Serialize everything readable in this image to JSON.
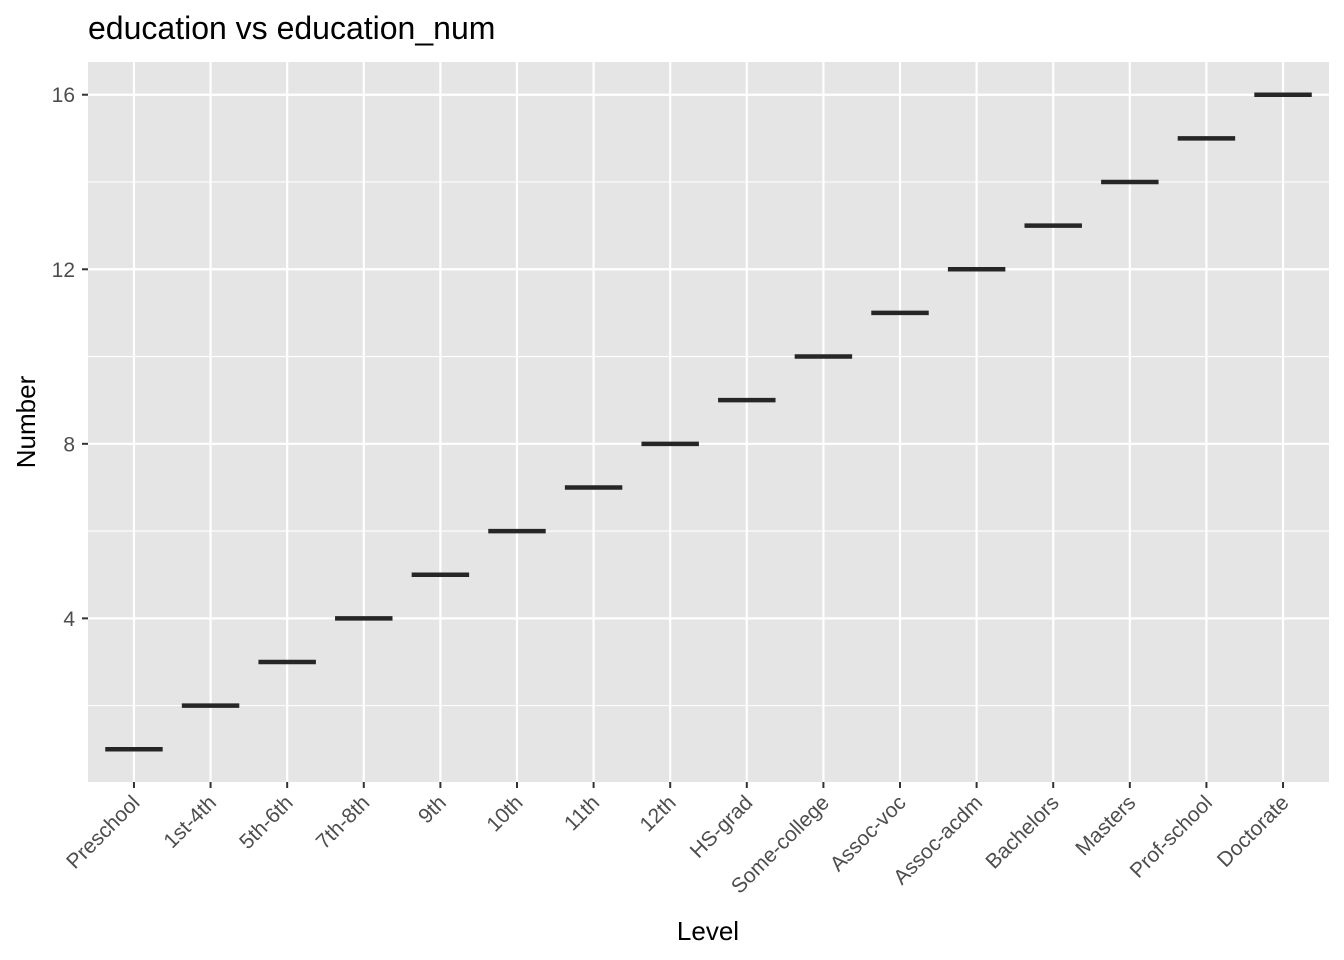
{
  "chart_data": {
    "type": "boxplot",
    "title": "education vs education_num",
    "xlabel": "Level",
    "ylabel": "Number",
    "categories": [
      "Preschool",
      "1st-4th",
      "5th-6th",
      "7th-8th",
      "9th",
      "10th",
      "11th",
      "12th",
      "HS-grad",
      "Some-college",
      "Assoc-voc",
      "Assoc-acdm",
      "Bachelors",
      "Masters",
      "Prof-school",
      "Doctorate"
    ],
    "values": [
      1,
      2,
      3,
      4,
      5,
      6,
      7,
      8,
      9,
      10,
      11,
      12,
      13,
      14,
      15,
      16
    ],
    "ylim": [
      0.25,
      16.75
    ],
    "yticks": [
      4,
      8,
      12,
      16
    ],
    "grid": true,
    "legend": "none",
    "colors": {
      "panel": "#e5e5e5",
      "grid": "#ffffff",
      "mark": "#262626",
      "tick_text": "#4d4d4d",
      "tick": "#333333"
    }
  }
}
